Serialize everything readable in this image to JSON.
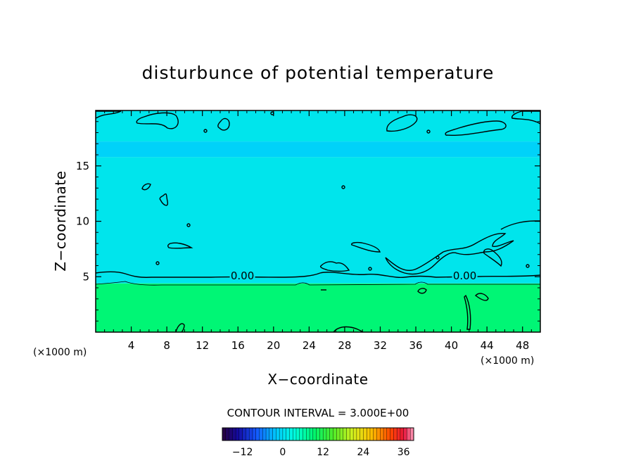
{
  "chart_data": {
    "type": "heatmap",
    "title": "disturbunce of potential temperature",
    "xlabel": "X−coordinate",
    "ylabel": "Z−coordinate",
    "x_unit_label": "(×1000 m)",
    "y_unit_label": "(×1000 m)",
    "xlim": [
      0,
      50
    ],
    "ylim": [
      0,
      20
    ],
    "x_ticks": [
      4,
      8,
      12,
      16,
      20,
      24,
      28,
      32,
      36,
      40,
      44,
      48
    ],
    "x_tick_labels": [
      "4",
      "8",
      "12",
      "16",
      "20",
      "24",
      "28",
      "32",
      "36",
      "40",
      "44",
      "48"
    ],
    "y_ticks": [
      5,
      10,
      15
    ],
    "y_tick_labels": [
      "5",
      "10",
      "15"
    ],
    "contour_interval_label": "CONTOUR INTERVAL = 3.000E+00",
    "contour_labels": [
      {
        "text": "0.00",
        "x": 16.5,
        "y": 4.9
      },
      {
        "text": "0.00",
        "x": 41.5,
        "y": 4.9
      }
    ],
    "field_bands": [
      {
        "z_from": 0,
        "z_to": 4.4,
        "value": 9
      },
      {
        "z_from": 4.4,
        "z_to": 15.8,
        "value": 1
      },
      {
        "z_from": 15.8,
        "z_to": 17.2,
        "value": -1
      },
      {
        "z_from": 17.2,
        "z_to": 20,
        "value": 1
      }
    ],
    "colorbar": {
      "vmin": -18,
      "vmax": 39,
      "ticks": [
        -12,
        0,
        12,
        24,
        36
      ],
      "tick_labels": [
        "−12",
        "0",
        "12",
        "24",
        "36"
      ]
    }
  }
}
